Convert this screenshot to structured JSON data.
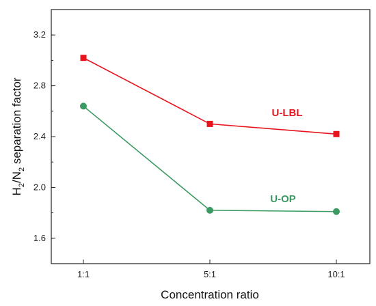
{
  "chart_data": {
    "type": "line",
    "xlabel": "Concentration ratio",
    "ylabel_main": "H",
    "ylabel_sub1": "2",
    "ylabel_mid": "/N",
    "ylabel_sub2": "2",
    "ylabel_tail": " separation factor",
    "categories": [
      "1:1",
      "5:1",
      "10:1"
    ],
    "ylim": [
      1.4,
      3.4
    ],
    "yticks": [
      "1.6",
      "2.0",
      "2.4",
      "2.8",
      "3.2"
    ],
    "grid": false,
    "series": [
      {
        "name": "U-LBL",
        "marker": "square",
        "color": "#e8141c",
        "values": [
          3.02,
          2.5,
          2.42
        ]
      },
      {
        "name": "U-OP",
        "marker": "circle",
        "color": "#3a9a62",
        "values": [
          2.64,
          1.82,
          1.81
        ]
      }
    ]
  }
}
